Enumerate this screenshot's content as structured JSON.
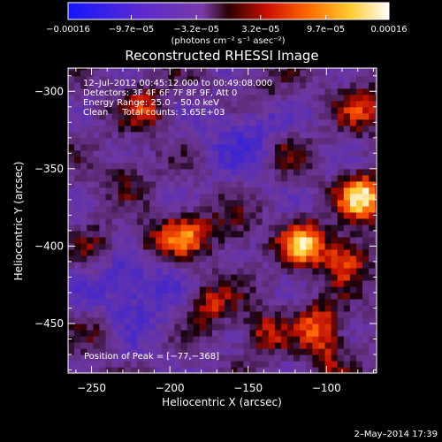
{
  "chart_data": {
    "type": "heatmap",
    "title": "Reconstructed RHESSI Image",
    "xlabel": "Heliocentric X (arcsec)",
    "ylabel": "Heliocentric Y (arcsec)",
    "xlim": [
      -265,
      -68
    ],
    "ylim": [
      -482,
      -285
    ],
    "x_ticks": [
      -250,
      -200,
      -150,
      -100
    ],
    "x_tick_labels": [
      "−250",
      "−200",
      "−150",
      "−100"
    ],
    "y_ticks": [
      -300,
      -350,
      -400,
      -450
    ],
    "y_tick_labels": [
      "−300",
      "−350",
      "−400",
      "−450"
    ],
    "colorbar": {
      "range": [
        -0.00016,
        0.00016
      ],
      "ticks": [
        -0.00016,
        -9.7e-05,
        -3.2e-05,
        3.2e-05,
        9.7e-05,
        0.00016
      ],
      "tick_labels": [
        "−0.00016",
        "−9.7e−05",
        "−3.2e−05",
        "3.2e−05",
        "9.7e−05",
        "0.00016"
      ],
      "unit_label": "(photons cm⁻² s⁻¹ asec⁻²)",
      "colors": [
        "#1515ff",
        "#7a3aa8",
        "#ff3000",
        "#ff9a00",
        "#ffff7a",
        "#ffffff"
      ]
    },
    "annotations": [
      "12–Jul–2012 00:45:12.000 to 00:49:08.000",
      "Detectors: 3F 4F 6F 7F 8F 9F, Att 0",
      "Energy Range: 25.0 – 50.0 keV",
      "Clean     Total counts: 3.65E+03"
    ],
    "peak_label": "Position of Peak = [−77,−368]",
    "peak": [
      -77,
      -368
    ],
    "sources": [
      {
        "x": -77,
        "y": -368,
        "amp": 0.00016
      },
      {
        "x": -115,
        "y": -398,
        "amp": 0.00014
      },
      {
        "x": -88,
        "y": -408,
        "amp": 0.00011
      },
      {
        "x": -190,
        "y": -392,
        "amp": 0.00011
      },
      {
        "x": -212,
        "y": -398,
        "amp": 8e-05
      },
      {
        "x": -175,
        "y": -438,
        "amp": 8e-05
      },
      {
        "x": -105,
        "y": -450,
        "amp": 9e-05
      },
      {
        "x": -140,
        "y": -455,
        "amp": 7e-05
      },
      {
        "x": -215,
        "y": -310,
        "amp": 7e-05
      },
      {
        "x": -245,
        "y": -400,
        "amp": 6e-05
      },
      {
        "x": -125,
        "y": -340,
        "amp": 5.5e-05
      },
      {
        "x": -160,
        "y": -390,
        "amp": 5e-05
      },
      {
        "x": -78,
        "y": -310,
        "amp": 7.5e-05
      },
      {
        "x": -245,
        "y": -455,
        "amp": 4.5e-05
      },
      {
        "x": -100,
        "y": -470,
        "amp": 6e-05
      },
      {
        "x": -140,
        "y": -300,
        "amp": 3e-05
      },
      {
        "x": -228,
        "y": -355,
        "amp": 4e-05
      }
    ]
  },
  "footer": {
    "date": "2–May–2014 17:39"
  }
}
